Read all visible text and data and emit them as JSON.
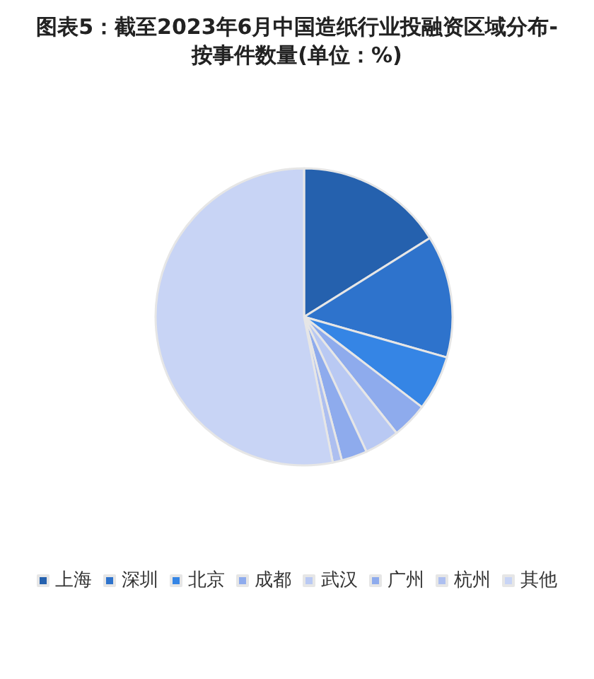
{
  "chart_data": {
    "type": "pie",
    "title": "图表5：截至2023年6月中国造纸行业投融资区域分布-按事件数量(单位：%)",
    "categories": [
      "上海",
      "深圳",
      "北京",
      "成都",
      "武汉",
      "广州",
      "杭州",
      "其他"
    ],
    "values": [
      16.1,
      13.3,
      6.0,
      3.9,
      3.8,
      2.8,
      1.0,
      53.1
    ],
    "colors": [
      "#2561ae",
      "#2e73cc",
      "#3585e5",
      "#8eabed",
      "#b9c9f3",
      "#8eabed",
      "#adbff0",
      "#c8d4f5"
    ],
    "legend": "bottom"
  }
}
